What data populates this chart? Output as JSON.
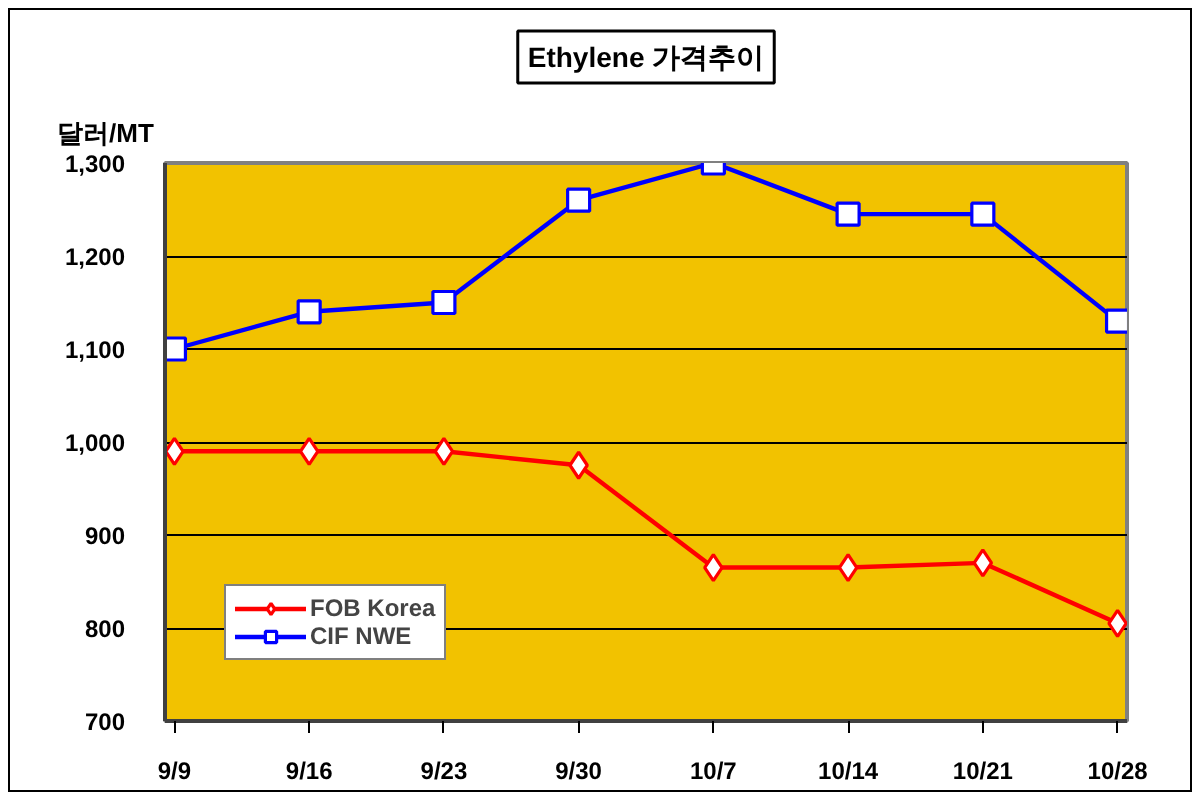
{
  "chart_data": {
    "type": "line",
    "title": "Ethylene 가격추이",
    "ylabel": "달러/MT",
    "categories": [
      "9/9",
      "9/16",
      "9/23",
      "9/30",
      "10/7",
      "10/14",
      "10/21",
      "10/28"
    ],
    "series": [
      {
        "name": "FOB Korea",
        "color": "#ff0000",
        "marker": "diamond",
        "values": [
          990,
          990,
          990,
          975,
          865,
          865,
          870,
          805
        ]
      },
      {
        "name": "CIF NWE",
        "color": "#0000ff",
        "marker": "square",
        "values": [
          1100,
          1140,
          1150,
          1260,
          1300,
          1245,
          1245,
          1130
        ]
      }
    ],
    "ylim": [
      700,
      1300
    ],
    "yticks": [
      700,
      800,
      900,
      {
        "value": 1000,
        "label": "1,000"
      },
      {
        "value": 1100,
        "label": "1,100"
      },
      {
        "value": 1200,
        "label": "1,200"
      },
      {
        "value": 1300,
        "label": "1,300"
      }
    ],
    "grid": "y",
    "legend": "bottom left",
    "line_style": "solid"
  }
}
